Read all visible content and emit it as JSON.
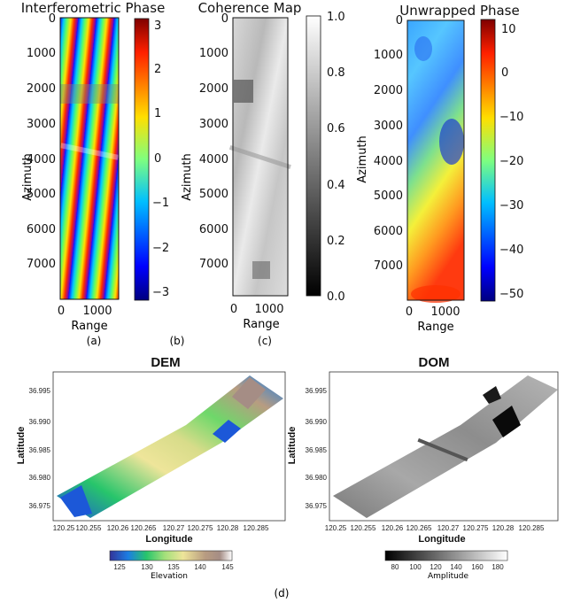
{
  "chart_data": [
    {
      "type": "heatmap",
      "title": "Interferometric Phase",
      "xlabel": "Range",
      "ylabel": "Azimuth",
      "xticks": [
        "0",
        "1000"
      ],
      "yticks": [
        "0",
        "1000",
        "2000",
        "3000",
        "4000",
        "5000",
        "6000",
        "7000"
      ],
      "colorbar": {
        "min": -3.14,
        "max": 3.14,
        "ticks": [
          "3",
          "2",
          "1",
          "0",
          "−1",
          "−2",
          "−3"
        ],
        "colormap": "jet"
      },
      "panel_label": "(a)"
    },
    {
      "type": "heatmap",
      "title": "Coherence Map",
      "xlabel": "Range",
      "ylabel": "Azimuth",
      "xticks": [
        "0",
        "1000"
      ],
      "yticks": [
        "0",
        "1000",
        "2000",
        "3000",
        "4000",
        "5000",
        "6000",
        "7000"
      ],
      "colorbar": {
        "min": 0.0,
        "max": 1.0,
        "ticks": [
          "1.0",
          "0.8",
          "0.6",
          "0.4",
          "0.2",
          "0.0"
        ],
        "colormap": "gray"
      },
      "panel_label": "(b)"
    },
    {
      "type": "heatmap",
      "title": "Unwrapped Phase",
      "xlabel": "Range",
      "ylabel": "Azimuth",
      "xticks": [
        "0",
        "1000"
      ],
      "yticks": [
        "0",
        "1000",
        "2000",
        "3000",
        "4000",
        "5000",
        "6000",
        "7000"
      ],
      "colorbar": {
        "min": -52,
        "max": 11,
        "ticks": [
          "10",
          "0",
          "−10",
          "−20",
          "−30",
          "−40",
          "−50"
        ],
        "colormap": "jet"
      },
      "panel_label": "(c)"
    },
    {
      "type": "heatmap",
      "title": "DEM",
      "xlabel": "Longitude",
      "ylabel": "Latitude",
      "xticks": [
        "120.25",
        "120.255",
        "120.26",
        "120.265",
        "120.27",
        "120.275",
        "120.28",
        "120.285"
      ],
      "yticks": [
        "36.995",
        "36.990",
        "36.985",
        "36.980",
        "36.975"
      ],
      "colorbar": {
        "label": "Elevation",
        "min": 122,
        "max": 146,
        "ticks": [
          "125",
          "130",
          "135",
          "140",
          "145"
        ],
        "colormap": "terrain"
      }
    },
    {
      "type": "heatmap",
      "title": "DOM",
      "xlabel": "Longitude",
      "ylabel": "Latitude",
      "xticks": [
        "120.25",
        "120.255",
        "120.26",
        "120.265",
        "120.27",
        "120.275",
        "120.28",
        "120.285"
      ],
      "yticks": [
        "36.995",
        "36.990",
        "36.985",
        "36.980",
        "36.975"
      ],
      "colorbar": {
        "label": "Amplitude",
        "min": 70,
        "max": 190,
        "ticks": [
          "80",
          "100",
          "120",
          "140",
          "160",
          "180"
        ],
        "colormap": "gray"
      }
    }
  ],
  "figure_label": "(d)"
}
